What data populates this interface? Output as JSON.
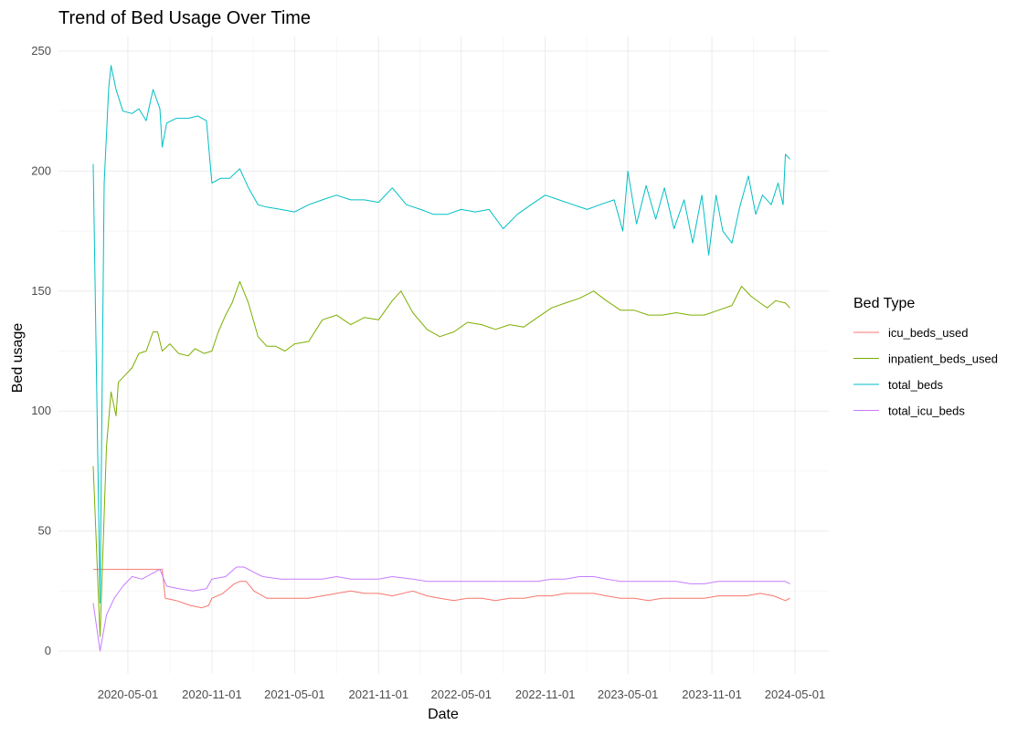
{
  "chart_data": {
    "type": "line",
    "title": "Trend of Bed Usage Over Time",
    "xlabel": "Date",
    "ylabel": "Bed usage",
    "x_type": "date",
    "xlim": [
      "2020-02-15",
      "2024-04-25"
    ],
    "ylim": [
      0,
      250
    ],
    "x_ticks": [
      "2020-05-01",
      "2020-11-01",
      "2021-05-01",
      "2021-11-01",
      "2022-05-01",
      "2022-11-01",
      "2023-05-01",
      "2023-11-01",
      "2024-05-01"
    ],
    "y_ticks": [
      0,
      50,
      100,
      150,
      200,
      250
    ],
    "grid": true,
    "legend": {
      "title": "Bed Type",
      "position": "right"
    },
    "series": [
      {
        "name": "icu_beds_used",
        "color": "#F8766D",
        "points": [
          [
            "2020-02-15",
            34
          ],
          [
            "2020-07-15",
            34
          ],
          [
            "2020-07-22",
            22
          ],
          [
            "2020-08-15",
            21
          ],
          [
            "2020-09-15",
            19
          ],
          [
            "2020-10-10",
            18
          ],
          [
            "2020-10-25",
            19
          ],
          [
            "2020-11-01",
            22
          ],
          [
            "2020-11-25",
            24
          ],
          [
            "2020-12-20",
            28
          ],
          [
            "2021-01-01",
            29
          ],
          [
            "2021-01-15",
            29
          ],
          [
            "2021-02-01",
            25
          ],
          [
            "2021-03-01",
            22
          ],
          [
            "2021-04-01",
            22
          ],
          [
            "2021-05-01",
            22
          ],
          [
            "2021-06-01",
            22
          ],
          [
            "2021-07-01",
            23
          ],
          [
            "2021-08-01",
            24
          ],
          [
            "2021-09-01",
            25
          ],
          [
            "2021-10-01",
            24
          ],
          [
            "2021-11-01",
            24
          ],
          [
            "2021-12-01",
            23
          ],
          [
            "2022-01-15",
            25
          ],
          [
            "2022-02-15",
            23
          ],
          [
            "2022-03-15",
            22
          ],
          [
            "2022-04-15",
            21
          ],
          [
            "2022-05-15",
            22
          ],
          [
            "2022-06-15",
            22
          ],
          [
            "2022-07-15",
            21
          ],
          [
            "2022-08-15",
            22
          ],
          [
            "2022-09-15",
            22
          ],
          [
            "2022-10-15",
            23
          ],
          [
            "2022-11-15",
            23
          ],
          [
            "2022-12-15",
            24
          ],
          [
            "2023-01-15",
            24
          ],
          [
            "2023-02-15",
            24
          ],
          [
            "2023-03-15",
            23
          ],
          [
            "2023-04-15",
            22
          ],
          [
            "2023-05-15",
            22
          ],
          [
            "2023-06-15",
            21
          ],
          [
            "2023-07-15",
            22
          ],
          [
            "2023-08-15",
            22
          ],
          [
            "2023-09-15",
            22
          ],
          [
            "2023-10-15",
            22
          ],
          [
            "2023-11-15",
            23
          ],
          [
            "2023-12-15",
            23
          ],
          [
            "2024-01-15",
            23
          ],
          [
            "2024-02-15",
            24
          ],
          [
            "2024-03-15",
            23
          ],
          [
            "2024-04-10",
            21
          ],
          [
            "2024-04-20",
            22
          ]
        ]
      },
      {
        "name": "inpatient_beds_used",
        "color": "#7CAE00",
        "points": [
          [
            "2020-02-15",
            77
          ],
          [
            "2020-03-01",
            6
          ],
          [
            "2020-03-15",
            85
          ],
          [
            "2020-03-25",
            108
          ],
          [
            "2020-04-05",
            98
          ],
          [
            "2020-04-10",
            112
          ],
          [
            "2020-04-25",
            115
          ],
          [
            "2020-05-10",
            118
          ],
          [
            "2020-05-25",
            124
          ],
          [
            "2020-06-10",
            125
          ],
          [
            "2020-06-25",
            133
          ],
          [
            "2020-07-05",
            133
          ],
          [
            "2020-07-15",
            125
          ],
          [
            "2020-08-01",
            128
          ],
          [
            "2020-08-20",
            124
          ],
          [
            "2020-09-10",
            123
          ],
          [
            "2020-09-25",
            126
          ],
          [
            "2020-10-15",
            124
          ],
          [
            "2020-11-01",
            125
          ],
          [
            "2020-11-15",
            133
          ],
          [
            "2020-12-01",
            140
          ],
          [
            "2020-12-15",
            145
          ],
          [
            "2021-01-01",
            154
          ],
          [
            "2021-01-20",
            145
          ],
          [
            "2021-02-10",
            131
          ],
          [
            "2021-03-01",
            127
          ],
          [
            "2021-03-20",
            127
          ],
          [
            "2021-04-10",
            125
          ],
          [
            "2021-05-01",
            128
          ],
          [
            "2021-06-01",
            129
          ],
          [
            "2021-07-01",
            138
          ],
          [
            "2021-08-01",
            140
          ],
          [
            "2021-09-01",
            136
          ],
          [
            "2021-10-01",
            139
          ],
          [
            "2021-11-01",
            138
          ],
          [
            "2021-12-01",
            146
          ],
          [
            "2021-12-20",
            150
          ],
          [
            "2022-01-15",
            141
          ],
          [
            "2022-02-15",
            134
          ],
          [
            "2022-03-15",
            131
          ],
          [
            "2022-04-15",
            133
          ],
          [
            "2022-05-15",
            137
          ],
          [
            "2022-06-15",
            136
          ],
          [
            "2022-07-15",
            134
          ],
          [
            "2022-08-15",
            136
          ],
          [
            "2022-09-15",
            135
          ],
          [
            "2022-10-15",
            139
          ],
          [
            "2022-11-15",
            143
          ],
          [
            "2022-12-15",
            145
          ],
          [
            "2023-01-15",
            147
          ],
          [
            "2023-02-15",
            150
          ],
          [
            "2023-03-15",
            146
          ],
          [
            "2023-04-15",
            142
          ],
          [
            "2023-05-15",
            142
          ],
          [
            "2023-06-15",
            140
          ],
          [
            "2023-07-15",
            140
          ],
          [
            "2023-08-15",
            141
          ],
          [
            "2023-09-15",
            140
          ],
          [
            "2023-10-15",
            140
          ],
          [
            "2023-11-15",
            142
          ],
          [
            "2023-12-15",
            144
          ],
          [
            "2024-01-05",
            152
          ],
          [
            "2024-01-25",
            148
          ],
          [
            "2024-02-15",
            145
          ],
          [
            "2024-03-01",
            143
          ],
          [
            "2024-03-20",
            146
          ],
          [
            "2024-04-10",
            145
          ],
          [
            "2024-04-20",
            143
          ]
        ]
      },
      {
        "name": "total_beds",
        "color": "#00BFC4",
        "points": [
          [
            "2020-02-15",
            203
          ],
          [
            "2020-03-01",
            20
          ],
          [
            "2020-03-10",
            195
          ],
          [
            "2020-03-20",
            235
          ],
          [
            "2020-03-25",
            244
          ],
          [
            "2020-04-05",
            234
          ],
          [
            "2020-04-20",
            225
          ],
          [
            "2020-05-10",
            224
          ],
          [
            "2020-05-25",
            226
          ],
          [
            "2020-06-10",
            221
          ],
          [
            "2020-06-25",
            234
          ],
          [
            "2020-07-10",
            226
          ],
          [
            "2020-07-15",
            210
          ],
          [
            "2020-07-25",
            220
          ],
          [
            "2020-08-15",
            222
          ],
          [
            "2020-09-10",
            222
          ],
          [
            "2020-10-01",
            223
          ],
          [
            "2020-10-20",
            221
          ],
          [
            "2020-11-01",
            195
          ],
          [
            "2020-11-20",
            197
          ],
          [
            "2020-12-10",
            197
          ],
          [
            "2021-01-01",
            201
          ],
          [
            "2021-01-20",
            193
          ],
          [
            "2021-02-10",
            186
          ],
          [
            "2021-03-01",
            185
          ],
          [
            "2021-04-01",
            184
          ],
          [
            "2021-05-01",
            183
          ],
          [
            "2021-06-01",
            186
          ],
          [
            "2021-07-01",
            188
          ],
          [
            "2021-08-01",
            190
          ],
          [
            "2021-09-01",
            188
          ],
          [
            "2021-10-01",
            188
          ],
          [
            "2021-11-01",
            187
          ],
          [
            "2021-12-01",
            193
          ],
          [
            "2022-01-01",
            186
          ],
          [
            "2022-02-01",
            184
          ],
          [
            "2022-03-01",
            182
          ],
          [
            "2022-04-01",
            182
          ],
          [
            "2022-05-01",
            184
          ],
          [
            "2022-06-01",
            183
          ],
          [
            "2022-07-01",
            184
          ],
          [
            "2022-08-01",
            176
          ],
          [
            "2022-09-01",
            182
          ],
          [
            "2022-10-01",
            186
          ],
          [
            "2022-11-01",
            190
          ],
          [
            "2022-12-01",
            188
          ],
          [
            "2023-01-01",
            186
          ],
          [
            "2023-02-01",
            184
          ],
          [
            "2023-03-01",
            186
          ],
          [
            "2023-04-01",
            188
          ],
          [
            "2023-04-20",
            175
          ],
          [
            "2023-05-01",
            200
          ],
          [
            "2023-05-20",
            178
          ],
          [
            "2023-06-10",
            194
          ],
          [
            "2023-07-01",
            180
          ],
          [
            "2023-07-20",
            193
          ],
          [
            "2023-08-10",
            176
          ],
          [
            "2023-09-01",
            188
          ],
          [
            "2023-09-20",
            170
          ],
          [
            "2023-10-10",
            190
          ],
          [
            "2023-10-25",
            165
          ],
          [
            "2023-11-10",
            190
          ],
          [
            "2023-11-25",
            175
          ],
          [
            "2023-12-15",
            170
          ],
          [
            "2024-01-01",
            185
          ],
          [
            "2024-01-20",
            198
          ],
          [
            "2024-02-05",
            182
          ],
          [
            "2024-02-20",
            190
          ],
          [
            "2024-03-10",
            186
          ],
          [
            "2024-03-25",
            195
          ],
          [
            "2024-04-05",
            186
          ],
          [
            "2024-04-10",
            207
          ],
          [
            "2024-04-20",
            205
          ]
        ]
      },
      {
        "name": "total_icu_beds",
        "color": "#C77CFF",
        "points": [
          [
            "2020-02-15",
            20
          ],
          [
            "2020-03-01",
            0
          ],
          [
            "2020-03-15",
            15
          ],
          [
            "2020-04-01",
            22
          ],
          [
            "2020-04-20",
            27
          ],
          [
            "2020-05-10",
            31
          ],
          [
            "2020-06-01",
            30
          ],
          [
            "2020-06-20",
            32
          ],
          [
            "2020-07-10",
            34
          ],
          [
            "2020-07-25",
            27
          ],
          [
            "2020-08-20",
            26
          ],
          [
            "2020-09-20",
            25
          ],
          [
            "2020-10-20",
            26
          ],
          [
            "2020-11-01",
            30
          ],
          [
            "2020-12-01",
            31
          ],
          [
            "2020-12-25",
            35
          ],
          [
            "2021-01-10",
            35
          ],
          [
            "2021-01-30",
            33
          ],
          [
            "2021-02-20",
            31
          ],
          [
            "2021-04-01",
            30
          ],
          [
            "2021-05-01",
            30
          ],
          [
            "2021-06-01",
            30
          ],
          [
            "2021-07-01",
            30
          ],
          [
            "2021-08-01",
            31
          ],
          [
            "2021-09-01",
            30
          ],
          [
            "2021-10-01",
            30
          ],
          [
            "2021-11-01",
            30
          ],
          [
            "2021-12-01",
            31
          ],
          [
            "2022-01-15",
            30
          ],
          [
            "2022-02-15",
            29
          ],
          [
            "2022-03-15",
            29
          ],
          [
            "2022-04-15",
            29
          ],
          [
            "2022-05-15",
            29
          ],
          [
            "2022-06-15",
            29
          ],
          [
            "2022-07-15",
            29
          ],
          [
            "2022-08-15",
            29
          ],
          [
            "2022-09-15",
            29
          ],
          [
            "2022-10-15",
            29
          ],
          [
            "2022-11-15",
            30
          ],
          [
            "2022-12-15",
            30
          ],
          [
            "2023-01-15",
            31
          ],
          [
            "2023-02-15",
            31
          ],
          [
            "2023-03-15",
            30
          ],
          [
            "2023-04-15",
            29
          ],
          [
            "2023-05-15",
            29
          ],
          [
            "2023-06-15",
            29
          ],
          [
            "2023-07-15",
            29
          ],
          [
            "2023-08-15",
            29
          ],
          [
            "2023-09-15",
            28
          ],
          [
            "2023-10-15",
            28
          ],
          [
            "2023-11-15",
            29
          ],
          [
            "2023-12-15",
            29
          ],
          [
            "2024-01-15",
            29
          ],
          [
            "2024-02-15",
            29
          ],
          [
            "2024-03-15",
            29
          ],
          [
            "2024-04-10",
            29
          ],
          [
            "2024-04-20",
            28
          ]
        ]
      }
    ]
  }
}
